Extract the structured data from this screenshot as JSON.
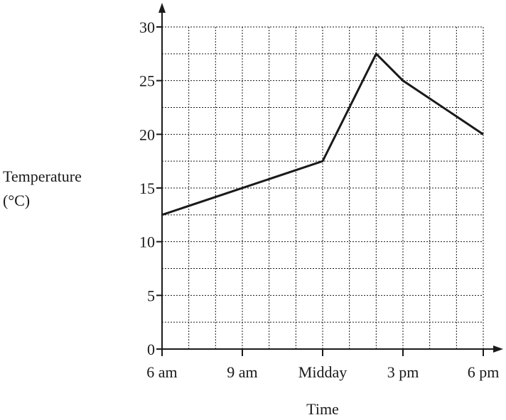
{
  "chart_data": {
    "type": "line",
    "title": "",
    "xlabel": "Time",
    "ylabel_lines": [
      "Temperature",
      "(°C)"
    ],
    "x_ticks": [
      {
        "value": 6,
        "label": "6 am"
      },
      {
        "value": 9,
        "label": "9 am"
      },
      {
        "value": 12,
        "label": "Midday"
      },
      {
        "value": 15,
        "label": "3 pm"
      },
      {
        "value": 18,
        "label": "6 pm"
      }
    ],
    "y_ticks": [
      0,
      5,
      10,
      15,
      20,
      25,
      30
    ],
    "xlim": [
      6,
      18
    ],
    "ylim": [
      0,
      30
    ],
    "x_grid_step": 1,
    "y_grid_step": 2.5,
    "grid": true,
    "series": [
      {
        "x": [
          6,
          12,
          14,
          15,
          18
        ],
        "y": [
          12.5,
          17.5,
          27.5,
          25,
          20
        ]
      }
    ],
    "colors": {
      "line": "#1a1a1a",
      "grid": "#1a1a1a",
      "axis": "#1a1a1a"
    }
  }
}
